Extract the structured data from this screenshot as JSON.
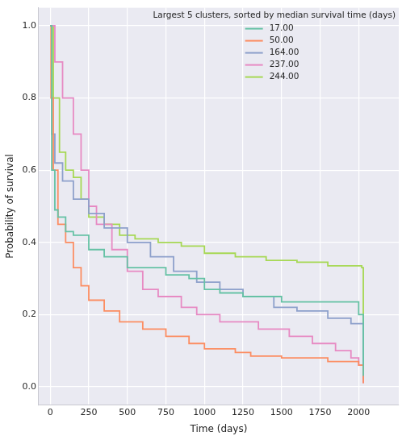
{
  "chart_data": {
    "type": "line",
    "line_style": "step",
    "x_label": "Time (days)",
    "y_label": "Probability of survival",
    "legend_title": "Largest 5 clusters, sorted by median survival time (days)",
    "legend": "upper right",
    "grid": true,
    "xlim": [
      -75,
      2260
    ],
    "xticks": [
      0,
      250,
      500,
      750,
      1000,
      1250,
      1500,
      1750,
      2000
    ],
    "ylim": [
      -0.05,
      1.05
    ],
    "yticks": [
      {
        "value": 0,
        "label": "0.0"
      },
      {
        "value": 0.2,
        "label": "0.2"
      },
      {
        "value": 0.4,
        "label": "0.4"
      },
      {
        "value": 0.6,
        "label": "0.6"
      },
      {
        "value": 0.8,
        "label": "0.8"
      },
      {
        "value": 1,
        "label": "1.0"
      }
    ],
    "series": [
      {
        "name": "17.00",
        "color": "#66c2a5",
        "x": [
          0,
          10,
          30,
          50,
          100,
          150,
          250,
          350,
          500,
          750,
          900,
          1000,
          1100,
          1250,
          1500,
          1950,
          2000,
          2030
        ],
        "values": [
          1.0,
          0.6,
          0.49,
          0.47,
          0.43,
          0.42,
          0.38,
          0.36,
          0.33,
          0.31,
          0.3,
          0.27,
          0.26,
          0.25,
          0.235,
          0.235,
          0.2,
          0.03
        ]
      },
      {
        "name": "50.00",
        "color": "#fc8d62",
        "x": [
          0,
          5,
          20,
          50,
          100,
          150,
          200,
          250,
          350,
          450,
          600,
          750,
          900,
          1000,
          1200,
          1300,
          1500,
          1800,
          2000,
          2030
        ],
        "values": [
          1.0,
          0.8,
          0.6,
          0.45,
          0.4,
          0.33,
          0.28,
          0.24,
          0.21,
          0.18,
          0.16,
          0.14,
          0.12,
          0.105,
          0.095,
          0.085,
          0.08,
          0.07,
          0.06,
          0.01
        ]
      },
      {
        "name": "164.00",
        "color": "#8da0cb",
        "x": [
          0,
          10,
          30,
          80,
          150,
          250,
          350,
          500,
          650,
          800,
          950,
          1100,
          1250,
          1450,
          1600,
          1800,
          1950,
          2020,
          2030
        ],
        "values": [
          1.0,
          0.7,
          0.62,
          0.57,
          0.52,
          0.48,
          0.44,
          0.4,
          0.36,
          0.32,
          0.29,
          0.27,
          0.25,
          0.22,
          0.21,
          0.19,
          0.175,
          0.175,
          0.02
        ]
      },
      {
        "name": "237.00",
        "color": "#e78ac3",
        "x": [
          0,
          30,
          80,
          150,
          200,
          250,
          300,
          400,
          500,
          600,
          700,
          850,
          950,
          1100,
          1350,
          1550,
          1700,
          1850,
          1950,
          2000,
          2030
        ],
        "values": [
          1.0,
          0.9,
          0.8,
          0.7,
          0.6,
          0.5,
          0.45,
          0.38,
          0.32,
          0.27,
          0.25,
          0.22,
          0.2,
          0.18,
          0.16,
          0.14,
          0.12,
          0.1,
          0.08,
          0.06,
          0.01
        ]
      },
      {
        "name": "244.00",
        "color": "#a6d854",
        "x": [
          0,
          20,
          60,
          100,
          150,
          200,
          250,
          350,
          450,
          550,
          700,
          850,
          1000,
          1200,
          1400,
          1600,
          1800,
          2020,
          2030
        ],
        "values": [
          1.0,
          0.8,
          0.65,
          0.6,
          0.58,
          0.52,
          0.47,
          0.45,
          0.42,
          0.41,
          0.4,
          0.39,
          0.37,
          0.36,
          0.35,
          0.345,
          0.335,
          0.33,
          0.09
        ]
      }
    ]
  }
}
